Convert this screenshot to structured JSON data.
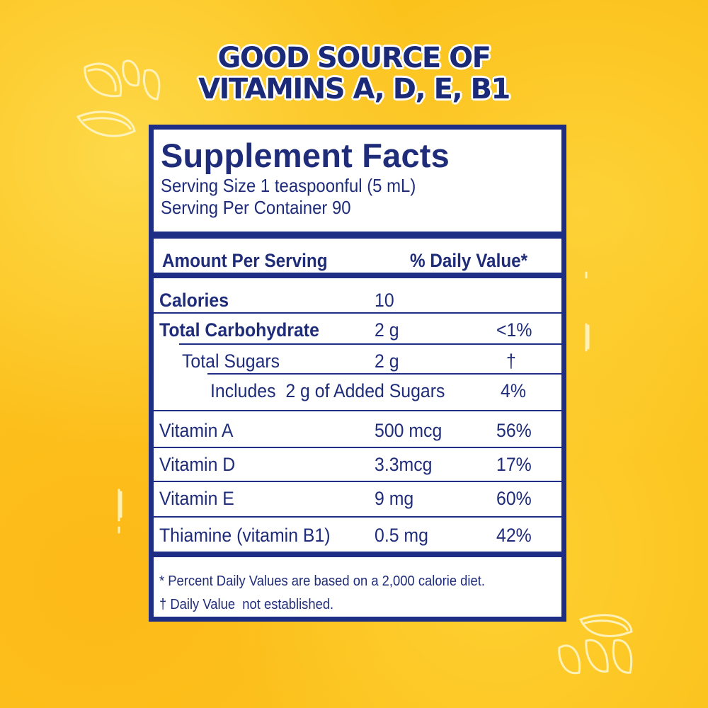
{
  "headline": {
    "line1": "GOOD SOURCE OF",
    "line2": "VITAMINS A, D, E, B1"
  },
  "facts": {
    "title": "Supplement Facts",
    "serving_size": "Serving Size 1 teaspoonful (5 mL)",
    "servings_per_container": "Serving Per Container 90",
    "amount_header": "Amount Per Serving",
    "dv_header": "% Daily Value*",
    "rows": [
      {
        "name": "Calories",
        "amount": "10",
        "dv": ""
      },
      {
        "name": "Total Carbohydrate",
        "amount": "2 g",
        "dv": "<1%"
      },
      {
        "name": "Total Sugars",
        "amount": "2 g",
        "dv": "†"
      },
      {
        "name": "Includes  2 g of Added Sugars",
        "amount": "",
        "dv": "4%"
      },
      {
        "name": "Vitamin A",
        "amount": "500 mcg",
        "dv": "56%"
      },
      {
        "name": "Vitamin D",
        "amount": "3.3mcg",
        "dv": "17%"
      },
      {
        "name": "Vitamin E",
        "amount": "9 mg",
        "dv": "60%"
      },
      {
        "name": "Thiamine (vitamin B1)",
        "amount": "0.5 mg",
        "dv": "42%"
      }
    ],
    "footnote_1": "* Percent Daily Values are based on a 2,000 calorie diet.",
    "footnote_2": "† Daily Value  not established."
  },
  "colors": {
    "navy": "#1e2e85",
    "background_yellow": "#fcc21c",
    "panel_white": "#ffffff"
  }
}
